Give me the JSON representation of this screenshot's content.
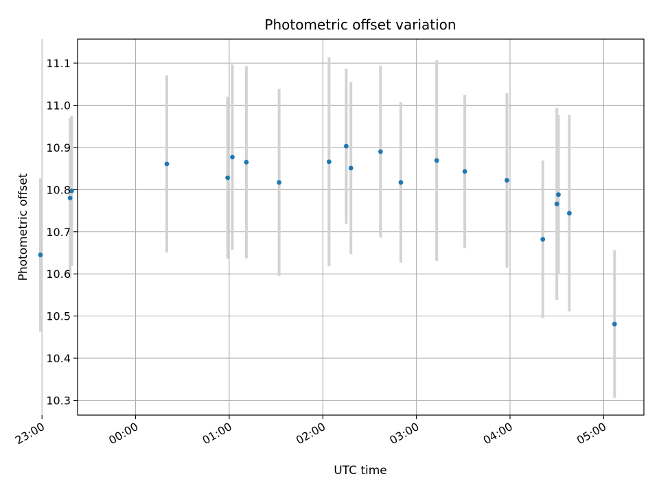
{
  "chart_data": {
    "type": "scatter",
    "title": "Photometric offset variation",
    "xlabel": "UTC time",
    "ylabel": "Photometric offset",
    "x_unit": "hours",
    "xlim": [
      -0.62,
      5.43
    ],
    "ylim": [
      10.265,
      11.157
    ],
    "grid": true,
    "x_ticks": [
      {
        "value": -1.0,
        "label": "23:00"
      },
      {
        "value": 0.0,
        "label": "00:00"
      },
      {
        "value": 1.0,
        "label": "01:00"
      },
      {
        "value": 2.0,
        "label": "02:00"
      },
      {
        "value": 3.0,
        "label": "03:00"
      },
      {
        "value": 4.0,
        "label": "04:00"
      },
      {
        "value": 5.0,
        "label": "05:00"
      }
    ],
    "y_ticks": [
      10.3,
      10.4,
      10.5,
      10.6,
      10.7,
      10.8,
      10.9,
      11.0,
      11.1
    ],
    "point_color": "#1f77b4",
    "errorbar_color": "#d3d3d3",
    "series": [
      {
        "points": [
          {
            "x": "22:59",
            "y": 10.645,
            "err": 0.182
          },
          {
            "x": "23:18",
            "y": 10.78,
            "err": 0.19
          },
          {
            "x": "23:19",
            "y": 10.797,
            "err": 0.178
          },
          {
            "x": "00:20",
            "y": 10.861,
            "err": 0.21
          },
          {
            "x": "00:59",
            "y": 10.828,
            "err": 0.192
          },
          {
            "x": "01:02",
            "y": 10.877,
            "err": 0.22
          },
          {
            "x": "01:11",
            "y": 10.865,
            "err": 0.228
          },
          {
            "x": "01:32",
            "y": 10.817,
            "err": 0.222
          },
          {
            "x": "02:04",
            "y": 10.866,
            "err": 0.248
          },
          {
            "x": "02:15",
            "y": 10.903,
            "err": 0.184
          },
          {
            "x": "02:18",
            "y": 10.851,
            "err": 0.204
          },
          {
            "x": "02:37",
            "y": 10.89,
            "err": 0.204
          },
          {
            "x": "02:50",
            "y": 10.817,
            "err": 0.19
          },
          {
            "x": "03:13",
            "y": 10.869,
            "err": 0.238
          },
          {
            "x": "03:31",
            "y": 10.843,
            "err": 0.182
          },
          {
            "x": "03:58",
            "y": 10.822,
            "err": 0.207
          },
          {
            "x": "04:21",
            "y": 10.682,
            "err": 0.187
          },
          {
            "x": "04:30",
            "y": 10.766,
            "err": 0.228
          },
          {
            "x": "04:31",
            "y": 10.788,
            "err": 0.189
          },
          {
            "x": "04:38",
            "y": 10.744,
            "err": 0.233
          },
          {
            "x": "05:07",
            "y": 10.481,
            "err": 0.175
          }
        ]
      }
    ]
  }
}
